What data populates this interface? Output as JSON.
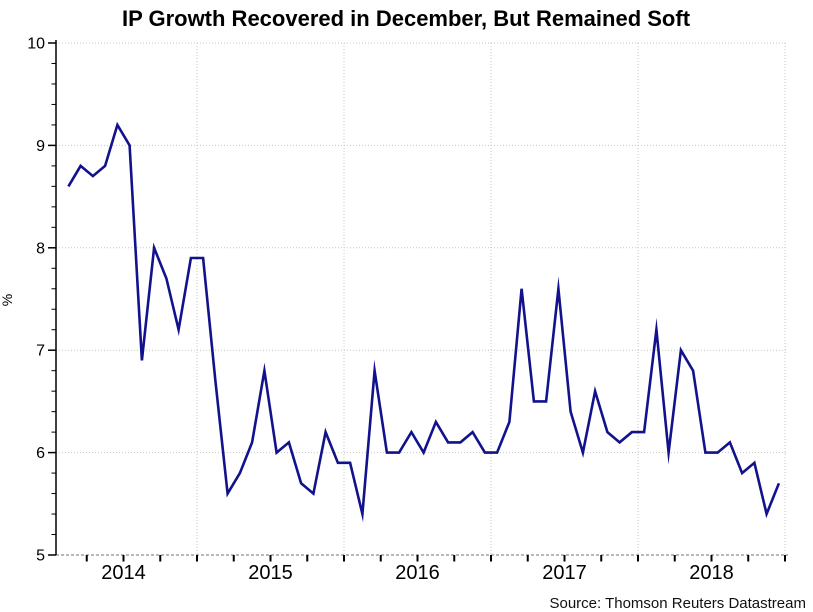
{
  "source_note": "Source: Thomson Reuters Datastream",
  "colors": {
    "line": "#12128c",
    "gridline": "#c4cabc",
    "bottom_axis": "#8f8f8f",
    "axis": "#000000"
  },
  "y_axis": {
    "title": "%",
    "min": 5,
    "max": 10,
    "tick_labels": [
      "5",
      "6",
      "7",
      "8",
      "9",
      "10"
    ],
    "minor_tick_step": 0.2
  },
  "x_axis": {
    "tick_labels": [
      "2014",
      "2015",
      "2016",
      "2017",
      "2018"
    ],
    "minor_ticks": "quarterly",
    "range": [
      "2014-01",
      "2019-01"
    ]
  },
  "chart_data": {
    "type": "line",
    "title": "IP Growth Recovered in December, But Remained Soft",
    "xlabel": "",
    "ylabel": "%",
    "ylim": [
      5,
      10
    ],
    "grid": {
      "horizontal": "dotted at each integer",
      "vertical": "dotted at year boundaries"
    },
    "legend_position": "none",
    "frequency": "monthly",
    "x": [
      "2014-02",
      "2014-03",
      "2014-04",
      "2014-05",
      "2014-06",
      "2014-07",
      "2014-08",
      "2014-09",
      "2014-10",
      "2014-11",
      "2014-12",
      "2015-01",
      "2015-02",
      "2015-03",
      "2015-04",
      "2015-05",
      "2015-06",
      "2015-07",
      "2015-08",
      "2015-09",
      "2015-10",
      "2015-11",
      "2015-12",
      "2016-01",
      "2016-02",
      "2016-03",
      "2016-04",
      "2016-05",
      "2016-06",
      "2016-07",
      "2016-08",
      "2016-09",
      "2016-10",
      "2016-11",
      "2016-12",
      "2017-01",
      "2017-02",
      "2017-03",
      "2017-04",
      "2017-05",
      "2017-06",
      "2017-07",
      "2017-08",
      "2017-09",
      "2017-10",
      "2017-11",
      "2017-12",
      "2018-01",
      "2018-02",
      "2018-03",
      "2018-04",
      "2018-05",
      "2018-06",
      "2018-07",
      "2018-08",
      "2018-09",
      "2018-10",
      "2018-11",
      "2018-12"
    ],
    "series": [
      {
        "color": "#12128c",
        "values": [
          8.6,
          8.8,
          8.7,
          8.8,
          9.2,
          9.0,
          6.9,
          8.0,
          7.7,
          7.2,
          7.9,
          7.9,
          6.7,
          5.6,
          5.8,
          6.1,
          6.8,
          6.0,
          6.1,
          5.7,
          5.6,
          6.2,
          5.9,
          5.9,
          5.4,
          6.8,
          6.0,
          6.0,
          6.2,
          6.0,
          6.3,
          6.1,
          6.1,
          6.2,
          6.0,
          6.0,
          6.3,
          7.6,
          6.5,
          6.5,
          7.6,
          6.4,
          6.0,
          6.6,
          6.2,
          6.1,
          6.2,
          6.2,
          7.2,
          6.0,
          7.0,
          6.8,
          6.0,
          6.0,
          6.1,
          5.8,
          5.9,
          5.4,
          5.7
        ]
      }
    ]
  }
}
